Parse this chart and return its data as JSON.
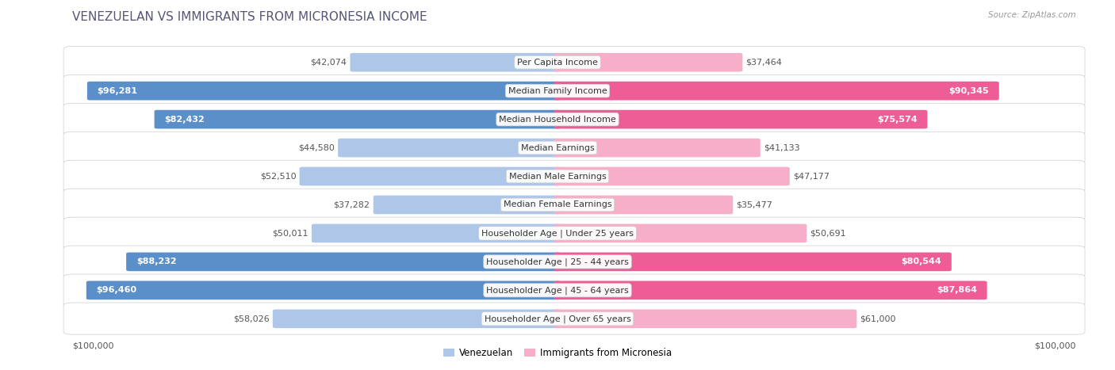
{
  "title": "VENEZUELAN VS IMMIGRANTS FROM MICRONESIA INCOME",
  "source": "Source: ZipAtlas.com",
  "categories": [
    "Per Capita Income",
    "Median Family Income",
    "Median Household Income",
    "Median Earnings",
    "Median Male Earnings",
    "Median Female Earnings",
    "Householder Age | Under 25 years",
    "Householder Age | 25 - 44 years",
    "Householder Age | 45 - 64 years",
    "Householder Age | Over 65 years"
  ],
  "venezuelan_values": [
    42074,
    96281,
    82432,
    44580,
    52510,
    37282,
    50011,
    88232,
    96460,
    58026
  ],
  "micronesia_values": [
    37464,
    90345,
    75574,
    41133,
    47177,
    35477,
    50691,
    80544,
    87864,
    61000
  ],
  "venezuelan_labels": [
    "$42,074",
    "$96,281",
    "$82,432",
    "$44,580",
    "$52,510",
    "$37,282",
    "$50,011",
    "$88,232",
    "$96,460",
    "$58,026"
  ],
  "micronesia_labels": [
    "$37,464",
    "$90,345",
    "$75,574",
    "$41,133",
    "$47,177",
    "$35,477",
    "$50,691",
    "$80,544",
    "$87,864",
    "$61,000"
  ],
  "max_value": 100000,
  "ven_color_light": "#aec6e8",
  "ven_color_dark": "#5b8fc9",
  "mic_color_light": "#f7aec8",
  "mic_color_dark": "#ee5d96",
  "ven_threshold": 70000,
  "mic_threshold": 70000,
  "legend_venezuelan": "Venezuelan",
  "legend_micronesia": "Immigrants from Micronesia",
  "background_color": "#ffffff",
  "row_even_color": "#f2f2f2",
  "row_odd_color": "#fafafa",
  "title_color": "#555577",
  "source_color": "#999999",
  "label_dark_color": "#555555",
  "label_white_color": "#ffffff",
  "title_fontsize": 11,
  "label_fontsize": 8,
  "category_fontsize": 8
}
